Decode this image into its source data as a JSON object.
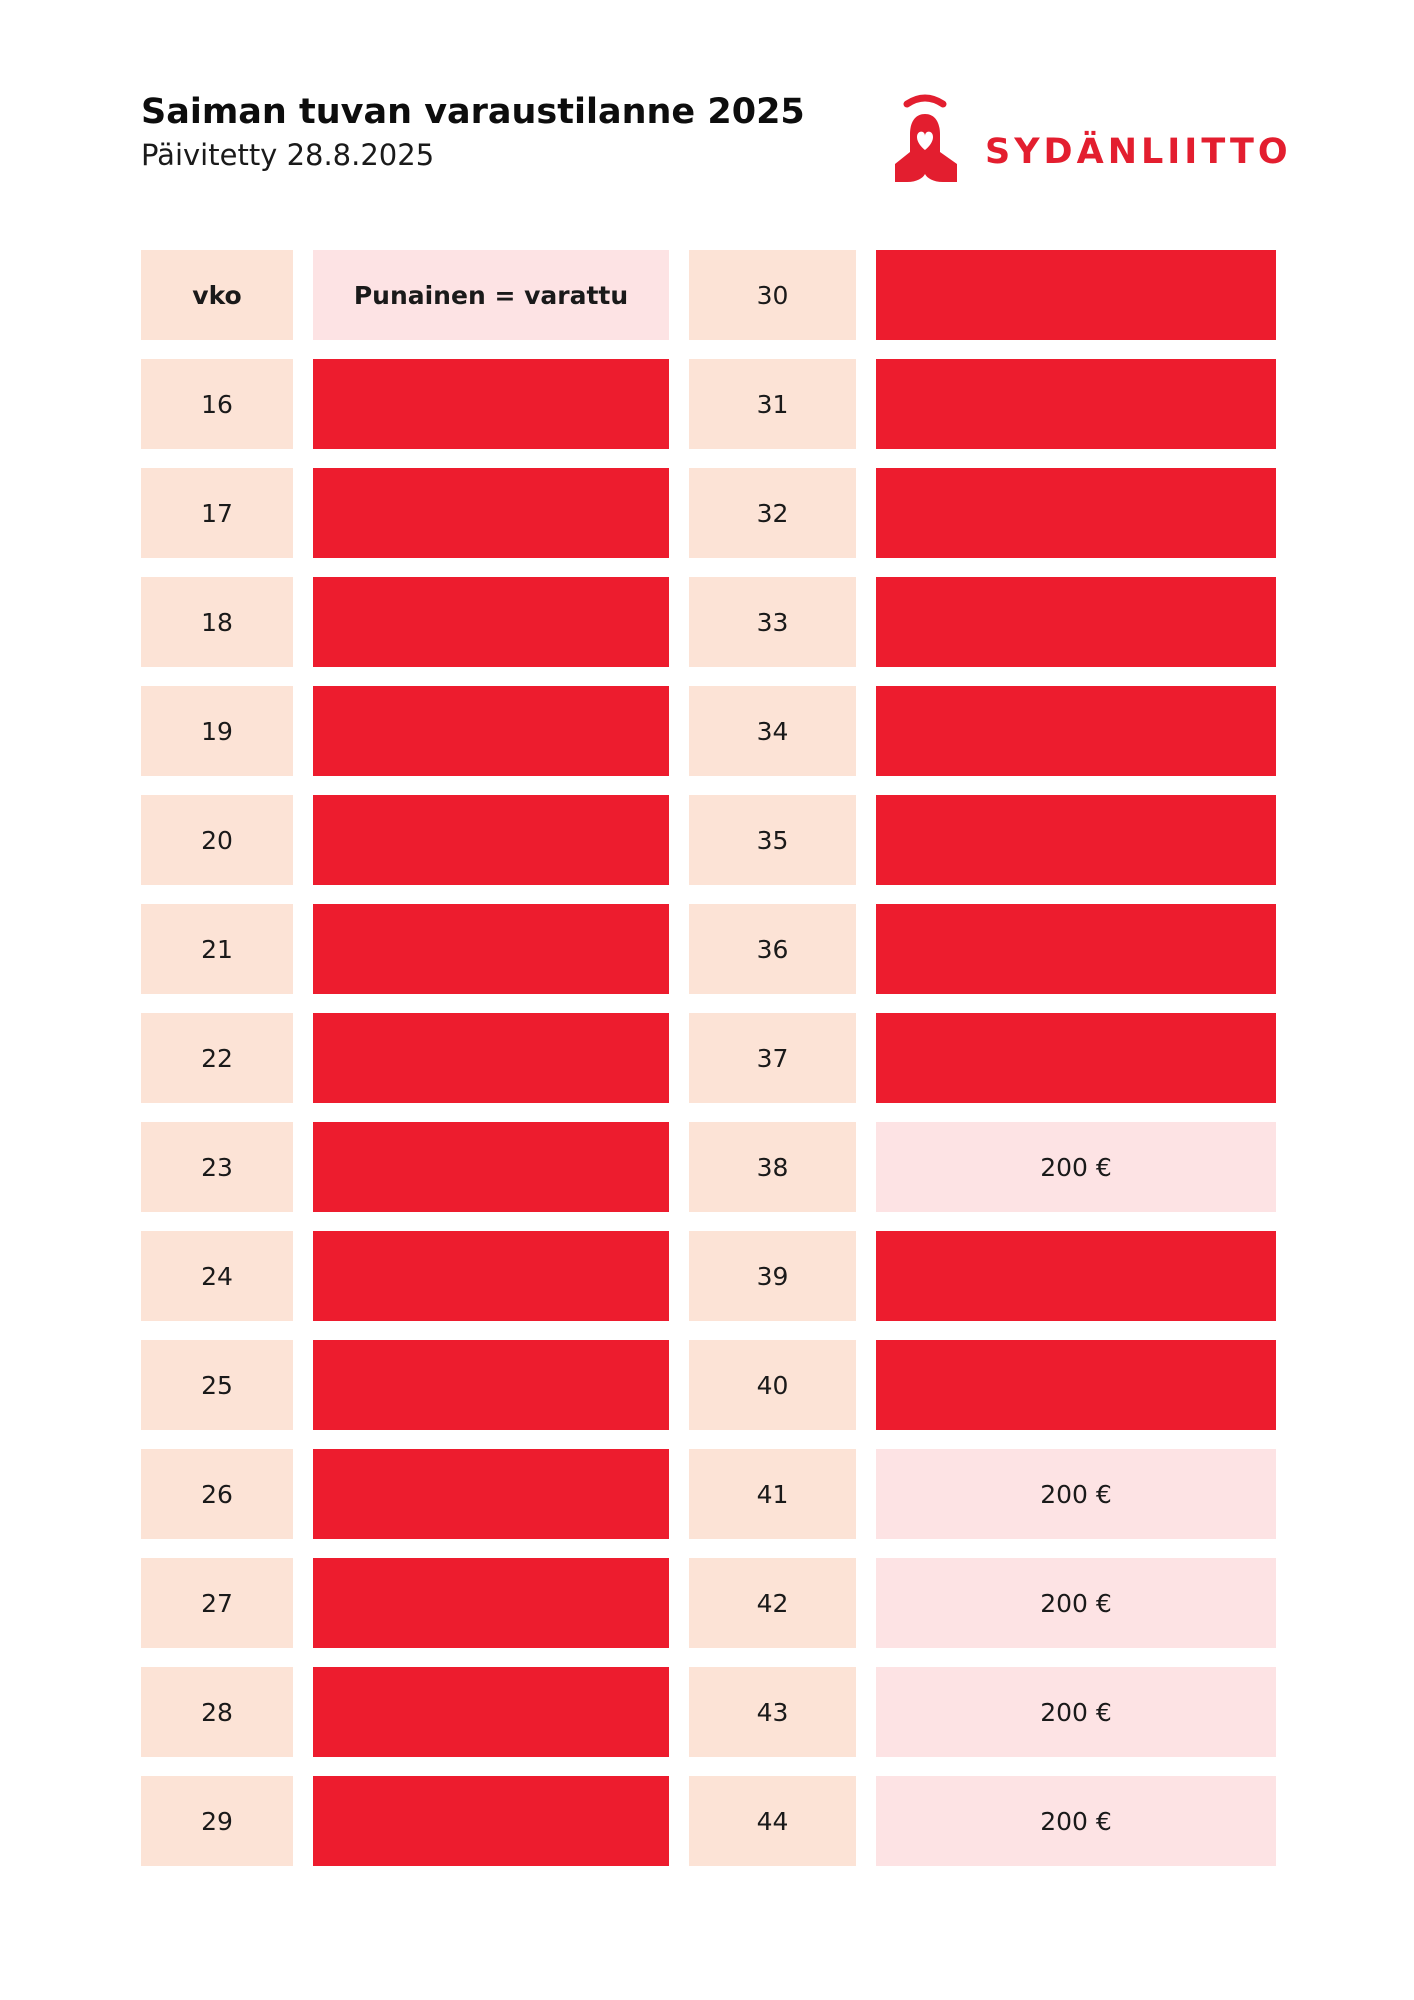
{
  "header": {
    "title": "Saiman tuvan varaustilanne 2025",
    "subtitle": "Päivitetty 28.8.2025"
  },
  "logo": {
    "text": "SYDÄNLIITTO",
    "icon": "heart-bell-logo-icon",
    "color": "#e31e2f"
  },
  "colors": {
    "booked": "#ed1c2e",
    "free": "#fde3e4",
    "week_cell": "#fce3d6"
  },
  "table": {
    "header_week_label": "vko",
    "legend_label": "Punainen = varattu",
    "left": [
      {
        "week": "16",
        "status": "booked",
        "price": ""
      },
      {
        "week": "17",
        "status": "booked",
        "price": ""
      },
      {
        "week": "18",
        "status": "booked",
        "price": ""
      },
      {
        "week": "19",
        "status": "booked",
        "price": ""
      },
      {
        "week": "20",
        "status": "booked",
        "price": ""
      },
      {
        "week": "21",
        "status": "booked",
        "price": ""
      },
      {
        "week": "22",
        "status": "booked",
        "price": ""
      },
      {
        "week": "23",
        "status": "booked",
        "price": ""
      },
      {
        "week": "24",
        "status": "booked",
        "price": ""
      },
      {
        "week": "25",
        "status": "booked",
        "price": ""
      },
      {
        "week": "26",
        "status": "booked",
        "price": ""
      },
      {
        "week": "27",
        "status": "booked",
        "price": ""
      },
      {
        "week": "28",
        "status": "booked",
        "price": ""
      },
      {
        "week": "29",
        "status": "booked",
        "price": ""
      }
    ],
    "right": [
      {
        "week": "30",
        "status": "booked",
        "price": ""
      },
      {
        "week": "31",
        "status": "booked",
        "price": ""
      },
      {
        "week": "32",
        "status": "booked",
        "price": ""
      },
      {
        "week": "33",
        "status": "booked",
        "price": ""
      },
      {
        "week": "34",
        "status": "booked",
        "price": ""
      },
      {
        "week": "35",
        "status": "booked",
        "price": ""
      },
      {
        "week": "36",
        "status": "booked",
        "price": ""
      },
      {
        "week": "37",
        "status": "booked",
        "price": ""
      },
      {
        "week": "38",
        "status": "free",
        "price": "200 €"
      },
      {
        "week": "39",
        "status": "booked",
        "price": ""
      },
      {
        "week": "40",
        "status": "booked",
        "price": ""
      },
      {
        "week": "41",
        "status": "free",
        "price": "200 €"
      },
      {
        "week": "42",
        "status": "free",
        "price": "200 €"
      },
      {
        "week": "43",
        "status": "free",
        "price": "200 €"
      },
      {
        "week": "44",
        "status": "free",
        "price": "200 €"
      }
    ]
  }
}
